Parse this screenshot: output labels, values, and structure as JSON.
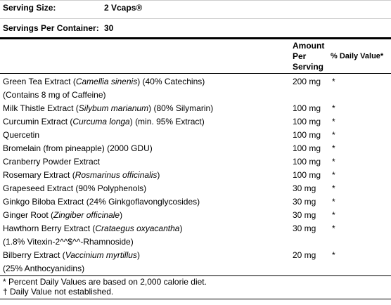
{
  "serving_size": {
    "label": "Serving Size:",
    "value": "2 Vcaps®"
  },
  "servings_per_container": {
    "label": "Servings Per Container:",
    "value": "30"
  },
  "header": {
    "amount": [
      "Amount",
      "Per",
      "Serving"
    ],
    "daily_value": "% Daily Value*"
  },
  "rows": [
    {
      "lines": [
        [
          "Green Tea Extract (",
          {
            "text": "Camellia sinenis",
            "italic": true
          },
          ") (40% Catechins)"
        ],
        [
          "(Contains 8 mg of Caffeine)"
        ]
      ],
      "amount": "200 mg",
      "daily_value": "*"
    },
    {
      "lines": [
        [
          "Milk Thistle Extract (",
          {
            "text": "Silybum marianum",
            "italic": true
          },
          ") (80% Silymarin)"
        ]
      ],
      "amount": "100 mg",
      "daily_value": "*"
    },
    {
      "lines": [
        [
          "Curcumin Extract (",
          {
            "text": "Curcuma longa",
            "italic": true
          },
          ") (min. 95% Extract)"
        ]
      ],
      "amount": "100 mg",
      "daily_value": "*"
    },
    {
      "lines": [
        [
          "Quercetin"
        ]
      ],
      "amount": "100 mg",
      "daily_value": "*"
    },
    {
      "lines": [
        [
          "Bromelain (from pineapple) (2000 GDU)"
        ]
      ],
      "amount": "100 mg",
      "daily_value": "*"
    },
    {
      "lines": [
        [
          "Cranberry Powder Extract"
        ]
      ],
      "amount": "100 mg",
      "daily_value": "*"
    },
    {
      "lines": [
        [
          "Rosemary Extract (",
          {
            "text": "Rosmarinus officinalis",
            "italic": true
          },
          ")"
        ]
      ],
      "amount": "100 mg",
      "daily_value": "*"
    },
    {
      "lines": [
        [
          "Grapeseed Extract (90% Polyphenols)"
        ]
      ],
      "amount": "30 mg",
      "daily_value": "*"
    },
    {
      "lines": [
        [
          "Ginkgo Biloba Extract (24% Ginkgoflavonglycosides)"
        ]
      ],
      "amount": "30 mg",
      "daily_value": "*"
    },
    {
      "lines": [
        [
          "Ginger Root (",
          {
            "text": "Zingiber officinale",
            "italic": true
          },
          ")"
        ]
      ],
      "amount": "30 mg",
      "daily_value": "*"
    },
    {
      "lines": [
        [
          "Hawthorn Berry Extract (",
          {
            "text": "Crataegus oxyacantha",
            "italic": true
          },
          ")"
        ],
        [
          "(1.8% Vitexin-2^^$^^-Rhamnoside)"
        ]
      ],
      "amount": "30 mg",
      "daily_value": "*"
    },
    {
      "lines": [
        [
          "Bilberry Extract (",
          {
            "text": "Vaccinium myrtillus",
            "italic": true
          },
          ")"
        ],
        [
          "(25% Anthocyanidins)"
        ]
      ],
      "amount": "20 mg",
      "daily_value": "*"
    }
  ],
  "footnotes": [
    "* Percent Daily Values are based on 2,000 calorie diet.",
    "† Daily Value not established."
  ]
}
